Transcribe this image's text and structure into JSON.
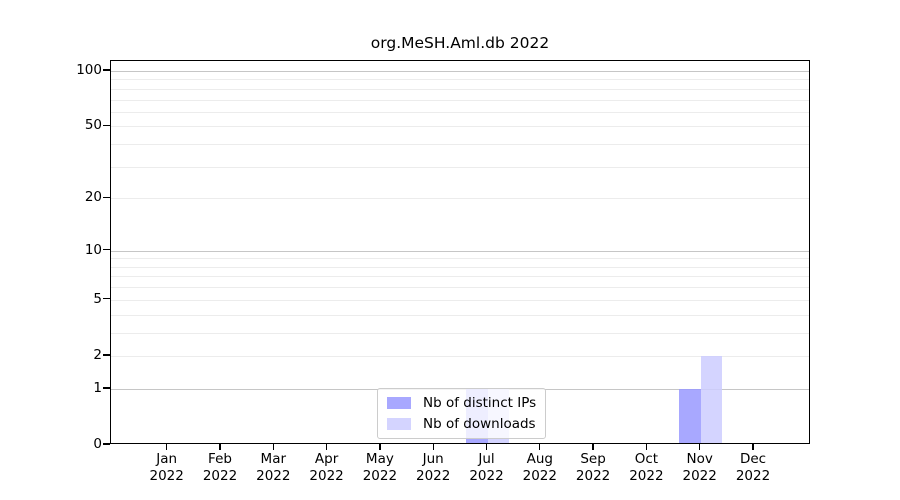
{
  "chart_data": {
    "type": "bar",
    "title": "org.MeSH.Aml.db 2022",
    "categories": [
      "Jan",
      "Feb",
      "Mar",
      "Apr",
      "May",
      "Jun",
      "Jul",
      "Aug",
      "Sep",
      "Oct",
      "Nov",
      "Dec"
    ],
    "year_label": "2022",
    "series": [
      {
        "name": "Nb of distinct IPs",
        "color": "#9999ff",
        "values": [
          0,
          0,
          0,
          0,
          0,
          0,
          1,
          0,
          0,
          0,
          1,
          0
        ]
      },
      {
        "name": "Nb of downloads",
        "color": "#ccccff",
        "values": [
          0,
          0,
          0,
          0,
          0,
          0,
          1,
          0,
          0,
          0,
          2,
          0
        ]
      }
    ],
    "xlabel": "",
    "ylabel": "",
    "yscale": "log10(value+1)",
    "ylim": [
      0,
      113
    ],
    "y_axis_tick_labels": [
      100,
      50,
      20,
      10,
      5,
      2,
      1,
      0
    ],
    "major_gridlines": [
      1,
      10,
      100
    ],
    "minor_gridlines": [
      2,
      3,
      4,
      5,
      6,
      7,
      8,
      9,
      20,
      30,
      40,
      50,
      60,
      70,
      80,
      90
    ],
    "grid": "horizontal",
    "legend_position": "bottom-center",
    "colors": {
      "major_gridline": "#c6c6c6",
      "minor_gridline": "#ececec",
      "axis": "#000000",
      "background": "#ffffff"
    }
  }
}
